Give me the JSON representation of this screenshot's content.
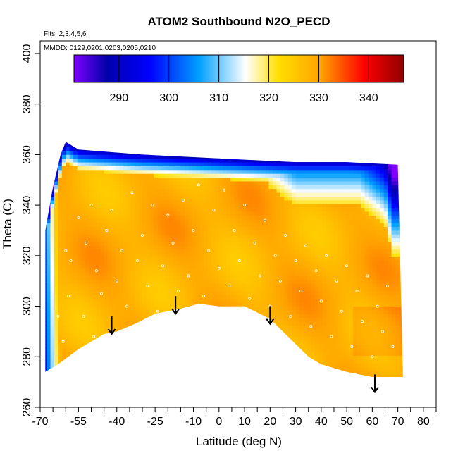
{
  "chart_data": {
    "type": "heatmap",
    "title": "ATOM2 Southbound N2O_PECD",
    "subtitle_flights": "Flts: 2,3,4,5,6",
    "subtitle_dates": "MMDD: 0129,0201,0203,0205,0210",
    "xlabel": "Latitude (deg N)",
    "ylabel": "Theta (C)",
    "xlim": [
      -70,
      85
    ],
    "ylim": [
      260,
      405
    ],
    "x_ticks": [
      -70,
      -55,
      -40,
      -25,
      -10,
      0,
      10,
      20,
      30,
      40,
      50,
      60,
      70,
      80
    ],
    "x_tick_labels": [
      "-70",
      "-55",
      "-40",
      "-25",
      "-10",
      "0",
      "10",
      "20",
      "30",
      "40",
      "50",
      "60",
      "70",
      "80"
    ],
    "x_minor_ticks": [
      -65,
      -60,
      -50,
      -45,
      -35,
      -30,
      -20,
      -15,
      -5,
      5,
      15,
      25,
      35,
      45,
      55,
      65,
      75,
      85
    ],
    "y_ticks": [
      260,
      280,
      300,
      320,
      340,
      360,
      380,
      400
    ],
    "y_tick_labels": [
      "260",
      "280",
      "300",
      "320",
      "340",
      "360",
      "380",
      "400"
    ],
    "colorbar": {
      "range": [
        281,
        347
      ],
      "ticks": [
        290,
        300,
        310,
        320,
        330,
        340
      ],
      "tick_labels": [
        "290",
        "300",
        "310",
        "320",
        "330",
        "340"
      ],
      "colors": [
        "#7f00ff",
        "#0000aa",
        "#0000ff",
        "#00a0ff",
        "#ffffff",
        "#ffe000",
        "#ffa000",
        "#ff0000",
        "#900000"
      ]
    },
    "field": {
      "upper_boundary": [
        [
          -68,
          330
        ],
        [
          -65,
          347
        ],
        [
          -62,
          360
        ],
        [
          -60,
          365
        ],
        [
          -55,
          362
        ],
        [
          -30,
          360
        ],
        [
          -10,
          359
        ],
        [
          10,
          358
        ],
        [
          30,
          357
        ],
        [
          50,
          357
        ],
        [
          70,
          356
        ]
      ],
      "lower_boundary": [
        [
          -68,
          274
        ],
        [
          -63,
          277
        ],
        [
          -55,
          283
        ],
        [
          -45,
          289
        ],
        [
          -40,
          290
        ],
        [
          -33,
          293
        ],
        [
          -25,
          297
        ],
        [
          -15,
          299
        ],
        [
          -8,
          301
        ],
        [
          0,
          300
        ],
        [
          10,
          300
        ],
        [
          20,
          295
        ],
        [
          28,
          287
        ],
        [
          35,
          280
        ],
        [
          40,
          277
        ],
        [
          50,
          274
        ],
        [
          60,
          272
        ],
        [
          72,
          272
        ]
      ],
      "background_value": 330,
      "high_lat_gradient": [
        [
          20,
          347,
          300
        ],
        [
          30,
          340,
          310
        ],
        [
          45,
          340,
          305
        ],
        [
          55,
          340,
          300
        ],
        [
          65,
          332,
          310
        ],
        [
          68,
          320,
          318
        ]
      ],
      "southern_edge_gradient": [
        [
          -65,
          345,
          310
        ],
        [
          -62,
          335,
          320
        ]
      ]
    },
    "sample_points": [
      [
        -60,
        322
      ],
      [
        -58,
        318
      ],
      [
        -55,
        335
      ],
      [
        -52,
        325
      ],
      [
        -50,
        340
      ],
      [
        -48,
        314
      ],
      [
        -46,
        305
      ],
      [
        -44,
        330
      ],
      [
        -42,
        338
      ],
      [
        -40,
        310
      ],
      [
        -38,
        322
      ],
      [
        -36,
        300
      ],
      [
        -34,
        345
      ],
      [
        -32,
        318
      ],
      [
        -30,
        328
      ],
      [
        -28,
        308
      ],
      [
        -26,
        340
      ],
      [
        -24,
        298
      ],
      [
        -22,
        316
      ],
      [
        -20,
        336
      ],
      [
        -18,
        325
      ],
      [
        -16,
        306
      ],
      [
        -14,
        342
      ],
      [
        -12,
        312
      ],
      [
        -10,
        330
      ],
      [
        -8,
        348
      ],
      [
        -6,
        304
      ],
      [
        -4,
        322
      ],
      [
        -2,
        338
      ],
      [
        0,
        315
      ],
      [
        2,
        346
      ],
      [
        4,
        308
      ],
      [
        6,
        330
      ],
      [
        8,
        318
      ],
      [
        10,
        340
      ],
      [
        12,
        303
      ],
      [
        14,
        325
      ],
      [
        16,
        312
      ],
      [
        18,
        334
      ],
      [
        20,
        300
      ],
      [
        22,
        320
      ],
      [
        24,
        310
      ],
      [
        26,
        328
      ],
      [
        28,
        296
      ],
      [
        30,
        318
      ],
      [
        32,
        306
      ],
      [
        34,
        324
      ],
      [
        36,
        292
      ],
      [
        38,
        314
      ],
      [
        40,
        302
      ],
      [
        42,
        320
      ],
      [
        44,
        288
      ],
      [
        46,
        310
      ],
      [
        48,
        298
      ],
      [
        50,
        316
      ],
      [
        52,
        284
      ],
      [
        54,
        306
      ],
      [
        56,
        294
      ],
      [
        58,
        312
      ],
      [
        60,
        280
      ],
      [
        62,
        300
      ],
      [
        64,
        290
      ],
      [
        66,
        308
      ],
      [
        68,
        284
      ],
      [
        -63,
        296
      ],
      [
        -61,
        286
      ],
      [
        -59,
        304
      ],
      [
        -57,
        280
      ],
      [
        -53,
        296
      ],
      [
        -49,
        288
      ]
    ],
    "arrows": [
      {
        "x": -42,
        "y_top": 296,
        "y_bottom": 289
      },
      {
        "x": -17,
        "y_top": 304,
        "y_bottom": 297
      },
      {
        "x": 20,
        "y_top": 300,
        "y_bottom": 293
      },
      {
        "x": 61,
        "y_top": 273,
        "y_bottom": 266
      }
    ]
  }
}
